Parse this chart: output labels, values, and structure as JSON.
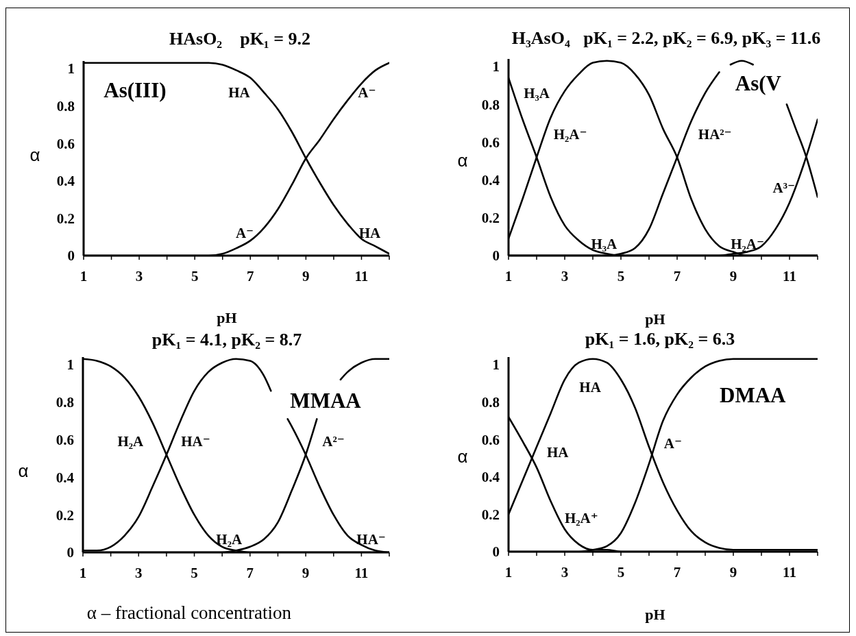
{
  "chart_data": [
    {
      "type": "line",
      "title": "HAsO₂    pK₁ = 9.2",
      "xlabel": "pH",
      "ylabel": "α",
      "xlim": [
        1,
        12
      ],
      "xticks": [
        1,
        {
          "value": 2,
          "label": null
        },
        3,
        {
          "value": 4,
          "label": null
        },
        5,
        {
          "value": 6,
          "label": null
        },
        7,
        {
          "value": 8,
          "label": null
        },
        9,
        {
          "value": 10,
          "label": null
        },
        11,
        {
          "value": 12,
          "label": null
        }
      ],
      "ylim": [
        0,
        1.04
      ],
      "yticks": [
        0,
        0.2,
        0.4,
        0.6,
        0.8,
        1
      ],
      "marker": "none",
      "line_style": "solid",
      "series": [
        {
          "color": "#000000",
          "x": [
            1,
            2,
            3,
            4,
            5,
            5.5,
            6,
            6.5,
            7,
            7.5,
            8,
            8.5,
            9,
            9.5,
            10,
            10.5,
            11,
            11.5,
            12
          ],
          "values": [
            1.03,
            1.03,
            1.03,
            1.03,
            1.03,
            1.03,
            1.02,
            0.99,
            0.95,
            0.87,
            0.78,
            0.66,
            0.52,
            0.39,
            0.27,
            0.17,
            0.09,
            0.05,
            0.01
          ]
        },
        {
          "color": "#000000",
          "x": [
            1,
            2,
            3,
            4,
            5,
            5.5,
            6,
            6.5,
            7,
            7.5,
            8,
            8.5,
            9,
            9.5,
            10,
            10.5,
            11,
            11.5,
            12
          ],
          "values": [
            0,
            0,
            0,
            0,
            0,
            0,
            0.01,
            0.04,
            0.08,
            0.15,
            0.25,
            0.38,
            0.52,
            0.62,
            0.73,
            0.83,
            0.92,
            0.99,
            1.03
          ]
        }
      ],
      "annotations": [
        "As(III)",
        "HA",
        "A⁻",
        "A⁻",
        "HA"
      ]
    },
    {
      "type": "line",
      "title": "H₃AsO₄   pK₁ = 2.2, pK₂ = 6.9, pK₃ = 11.6",
      "xlabel": "pH",
      "ylabel": "α",
      "xlim": [
        1,
        12
      ],
      "xticks": [
        1,
        {
          "value": 2,
          "label": null
        },
        3,
        {
          "value": 4,
          "label": null
        },
        5,
        {
          "value": 6,
          "label": null
        },
        7,
        {
          "value": 8,
          "label": null
        },
        9,
        {
          "value": 10,
          "label": null
        },
        11,
        {
          "value": 12,
          "label": null
        }
      ],
      "ylim": [
        0,
        1.04
      ],
      "yticks": [
        0,
        0.2,
        0.4,
        0.6,
        0.8,
        1
      ],
      "marker": "none",
      "line_style": "solid",
      "series": [
        {
          "color": "#000000",
          "x": [
            1,
            1.5,
            2,
            2.5,
            3,
            3.5,
            4,
            4.5,
            5,
            6,
            7,
            8,
            9,
            10,
            11,
            12
          ],
          "values": [
            0.94,
            0.72,
            0.52,
            0.31,
            0.16,
            0.08,
            0.03,
            0.01,
            0,
            0,
            0,
            0,
            0,
            0,
            0,
            0
          ]
        },
        {
          "color": "#000000",
          "x": [
            1,
            1.5,
            2,
            2.5,
            3,
            3.5,
            4,
            4.5,
            5,
            5.5,
            6,
            6.5,
            7,
            7.5,
            8,
            8.5,
            9,
            9.5,
            10,
            11,
            12
          ],
          "values": [
            0.09,
            0.3,
            0.52,
            0.73,
            0.87,
            0.96,
            1.02,
            1.03,
            1.02,
            0.96,
            0.85,
            0.67,
            0.52,
            0.3,
            0.14,
            0.05,
            0.02,
            0,
            0,
            0,
            0
          ]
        },
        {
          "color": "#000000",
          "x": [
            1,
            2,
            3,
            4,
            4.5,
            5,
            5.5,
            6,
            6.5,
            7,
            7.5,
            8,
            8.5,
            8.75,
            8.9,
            9.3,
            9.7,
            9.85,
            10.9,
            11.2,
            11.6,
            12
          ],
          "values": [
            0,
            0,
            0,
            0,
            0,
            0.01,
            0.04,
            0.14,
            0.33,
            0.52,
            0.71,
            0.86,
            0.97,
            null,
            1.01,
            1.03,
            1.01,
            null,
            0.8,
            0.68,
            0.52,
            0.31
          ]
        },
        {
          "color": "#000000",
          "x": [
            1,
            2,
            3,
            4,
            5,
            6,
            7,
            8,
            8.5,
            9,
            9.5,
            10,
            10.5,
            11,
            11.5,
            12
          ],
          "values": [
            0,
            0,
            0,
            0,
            0,
            0,
            0,
            0,
            0,
            0.01,
            0.02,
            0.05,
            0.14,
            0.28,
            0.48,
            0.72
          ]
        }
      ],
      "annotations": [
        "As(V",
        "H₃A",
        "H₂A⁻",
        "H₃A",
        "HA²⁻",
        "H₂A⁻",
        "A³⁻"
      ]
    },
    {
      "type": "line",
      "title": "pK₁ = 4.1, pK₂ = 8.7",
      "ylabel": "α",
      "xlim": [
        1,
        12
      ],
      "xticks": [
        1,
        {
          "value": 2,
          "label": null
        },
        3,
        {
          "value": 4,
          "label": null
        },
        5,
        {
          "value": 6,
          "label": null
        },
        7,
        {
          "value": 8,
          "label": null
        },
        9,
        {
          "value": 10,
          "label": null
        },
        11,
        {
          "value": 12,
          "label": null
        }
      ],
      "ylim": [
        0,
        1.04
      ],
      "yticks": [
        0,
        0.2,
        0.4,
        0.6,
        0.8,
        1
      ],
      "marker": "none",
      "line_style": "solid",
      "series": [
        {
          "color": "#000000",
          "x": [
            1,
            1.5,
            2,
            2.5,
            3,
            3.5,
            4,
            4.5,
            5,
            5.5,
            6,
            6.5,
            7,
            8,
            9,
            10,
            11,
            12
          ],
          "values": [
            1.03,
            1.02,
            0.99,
            0.93,
            0.83,
            0.69,
            0.52,
            0.35,
            0.2,
            0.09,
            0.03,
            0.01,
            0,
            0,
            0,
            0,
            0,
            0
          ]
        },
        {
          "color": "#000000",
          "x": [
            1,
            1.5,
            2,
            2.5,
            3,
            3.5,
            4,
            4.5,
            5,
            5.5,
            6,
            6.5,
            7,
            7.5,
            7.75,
            8.05,
            8.35,
            8.5,
            9,
            9.5,
            10,
            10.5,
            11,
            11.5,
            12
          ],
          "values": [
            0.01,
            0.01,
            0.03,
            0.09,
            0.19,
            0.35,
            0.52,
            0.7,
            0.86,
            0.96,
            1.01,
            1.03,
            1.02,
            0.94,
            0.86,
            null,
            0.71,
            0.67,
            0.52,
            0.35,
            0.2,
            0.09,
            0.04,
            0.01,
            0
          ]
        },
        {
          "color": "#000000",
          "x": [
            1,
            2,
            3,
            4,
            5,
            6,
            6.5,
            7,
            7.5,
            8,
            8.5,
            9,
            9.4,
            9.8,
            10.25,
            10.5,
            11,
            11.5,
            12
          ],
          "values": [
            0,
            0,
            0,
            0,
            0,
            0,
            0.01,
            0.03,
            0.07,
            0.16,
            0.33,
            0.52,
            0.71,
            null,
            0.92,
            0.96,
            1.01,
            1.03,
            1.03
          ]
        }
      ],
      "annotations": [
        "MMAA",
        "α – fractional concentration",
        "H₂A",
        "HA⁻",
        "H₂A",
        "A²⁻",
        "HA⁻"
      ]
    },
    {
      "type": "line",
      "title": "pK₁ = 1.6, pK₂ = 6.3",
      "xlabel": "pH",
      "ylabel": "α",
      "xlim": [
        1,
        12
      ],
      "xticks": [
        1,
        {
          "value": 2,
          "label": null
        },
        3,
        {
          "value": 4,
          "label": null
        },
        5,
        {
          "value": 6,
          "label": null
        },
        7,
        {
          "value": 8,
          "label": null
        },
        9,
        {
          "value": 10,
          "label": null
        },
        11,
        {
          "value": 12,
          "label": null
        }
      ],
      "ylim": [
        0,
        1.04
      ],
      "yticks": [
        0,
        0.2,
        0.4,
        0.6,
        0.8,
        1
      ],
      "marker": "none",
      "line_style": "solid",
      "series": [
        {
          "color": "#000000",
          "x": [
            1,
            1.5,
            2,
            2.5,
            3,
            3.5,
            4,
            4.5,
            5,
            6,
            7,
            8,
            9,
            10,
            11,
            12
          ],
          "values": [
            0.72,
            0.59,
            0.45,
            0.27,
            0.12,
            0.04,
            0.01,
            0.01,
            0,
            0,
            0,
            0,
            0,
            0,
            0,
            0
          ]
        },
        {
          "color": "#000000",
          "x": [
            1,
            1.5,
            2,
            2.5,
            3,
            3.5,
            4,
            4.5,
            5,
            5.5,
            6,
            6.5,
            7,
            7.5,
            8,
            8.5,
            9,
            10,
            11,
            12
          ],
          "values": [
            0.2,
            0.38,
            0.56,
            0.74,
            0.92,
            1.01,
            1.03,
            1.01,
            0.92,
            0.77,
            0.56,
            0.37,
            0.22,
            0.11,
            0.05,
            0.02,
            0.01,
            0.01,
            0.01,
            0.01
          ]
        },
        {
          "color": "#000000",
          "x": [
            1,
            2,
            3,
            3.5,
            4,
            4.5,
            5,
            5.5,
            6,
            6.5,
            7,
            7.5,
            8,
            8.5,
            9,
            10,
            11,
            12
          ],
          "values": [
            0,
            0,
            0,
            0,
            0.01,
            0.03,
            0.1,
            0.26,
            0.47,
            0.7,
            0.84,
            0.93,
            0.99,
            1.02,
            1.03,
            1.03,
            1.03,
            1.03
          ]
        }
      ],
      "annotations": [
        "DMAA",
        "HA",
        "HA",
        "H₂A⁺",
        "A⁻"
      ]
    }
  ]
}
